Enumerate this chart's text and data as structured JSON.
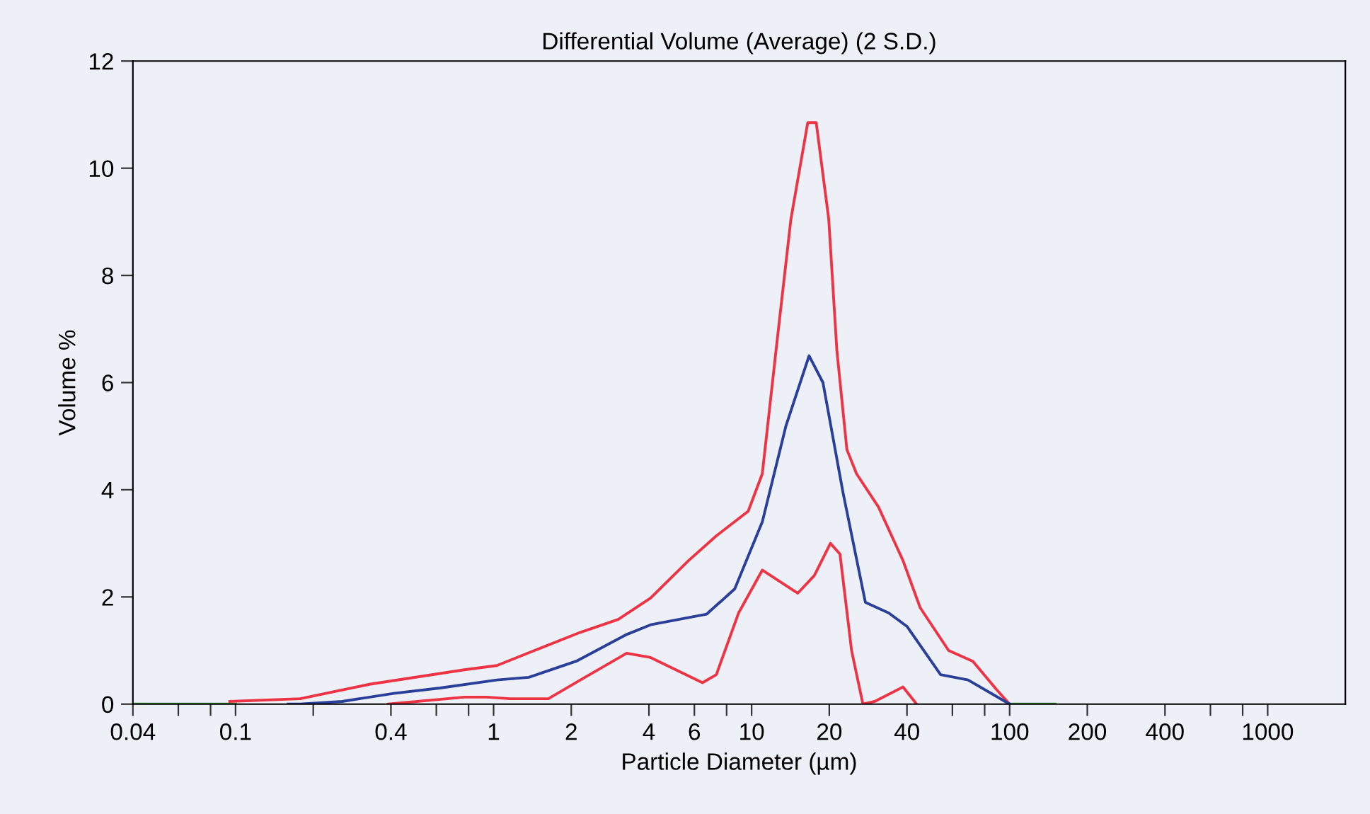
{
  "chart_data": {
    "type": "line",
    "title": "Differential Volume (Average) (2 S.D.)",
    "xlabel": "Particle Diameter (µm)",
    "ylabel": "Volume %",
    "log": "x",
    "grid": false,
    "legend": false,
    "marker": "none",
    "line_style": "solid",
    "xlim": [
      0.04,
      2000
    ],
    "ylim": [
      0,
      12
    ],
    "yticks": [
      0,
      2,
      4,
      6,
      8,
      10,
      12
    ],
    "xticks": [
      0.04,
      {
        "value": 0.06,
        "label": null
      },
      {
        "value": 0.08,
        "label": null
      },
      0.1,
      {
        "value": 0.2,
        "label": null
      },
      0.4,
      {
        "value": 0.6,
        "label": null
      },
      {
        "value": 0.8,
        "label": null
      },
      1,
      2,
      4,
      6,
      {
        "value": 8,
        "label": null
      },
      10,
      20,
      40,
      {
        "value": 60,
        "label": null
      },
      {
        "value": 80,
        "label": null
      },
      100,
      200,
      400,
      {
        "value": 600,
        "label": null
      },
      {
        "value": 800,
        "label": null
      },
      1000
    ],
    "series": [
      {
        "color": "#3a9a3a",
        "x": [
          0.04,
          0.1
        ],
        "values": [
          0,
          0
        ]
      },
      {
        "color": "#3a9a3a",
        "x": [
          100,
          150
        ],
        "values": [
          0,
          0
        ]
      },
      {
        "color": "#ee3344",
        "x": [
          0.095,
          0.178,
          0.33,
          0.77,
          1.03,
          1.44,
          2.17,
          3.04,
          4.06,
          5.7,
          7.3,
          9.7,
          11,
          12.5,
          14.2,
          16.5,
          17.8,
          19.9,
          21.4,
          23.4,
          25.5,
          31,
          38.6,
          45,
          58,
          72,
          89,
          100
        ],
        "values": [
          0.05,
          0.1,
          0.37,
          0.64,
          0.72,
          1.0,
          1.34,
          1.58,
          1.98,
          2.68,
          3.14,
          3.6,
          4.3,
          6.7,
          9.05,
          10.85,
          10.85,
          9.05,
          6.6,
          4.75,
          4.3,
          3.68,
          2.68,
          1.8,
          1.0,
          0.8,
          0.27,
          0
        ]
      },
      {
        "color": "#2a3f9a",
        "x": [
          0.16,
          0.178,
          0.259,
          0.41,
          0.62,
          1.03,
          1.37,
          2.09,
          3.28,
          4.06,
          6.7,
          8.6,
          11,
          13.6,
          16.7,
          18.9,
          22.6,
          27.6,
          34,
          40,
          54,
          69,
          96,
          100
        ],
        "values": [
          0,
          0,
          0.05,
          0.2,
          0.3,
          0.45,
          0.5,
          0.8,
          1.3,
          1.48,
          1.68,
          2.15,
          3.4,
          5.2,
          6.5,
          6.0,
          3.95,
          1.9,
          1.7,
          1.45,
          0.55,
          0.45,
          0.05,
          0
        ]
      },
      {
        "color": "#ee3344",
        "x": [
          0.39,
          0.77,
          0.94,
          1.16,
          1.63,
          2.17,
          3.28,
          4.06,
          6.45,
          7.3,
          8.9,
          11,
          15.1,
          17.5,
          20.2,
          22,
          24.4,
          27,
          30,
          38.6,
          43.6
        ],
        "values": [
          0,
          0.13,
          0.13,
          0.1,
          0.1,
          0.45,
          0.95,
          0.87,
          0.4,
          0.55,
          1.7,
          2.5,
          2.07,
          2.4,
          3.0,
          2.8,
          1.0,
          0,
          0.05,
          0.32,
          0
        ]
      }
    ]
  }
}
